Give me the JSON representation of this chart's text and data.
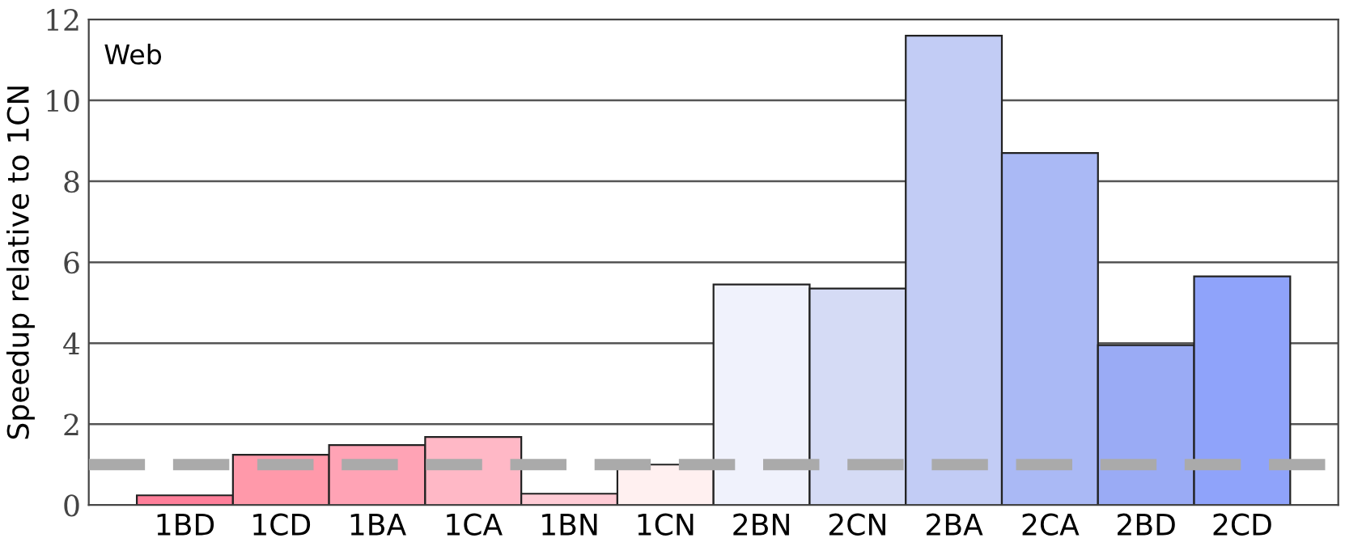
{
  "chart_data": {
    "type": "bar",
    "ylabel": "Speedup relative to 1CN",
    "annotations": [
      "Web"
    ],
    "categories": [
      "1BD",
      "1CD",
      "1BA",
      "1CA",
      "1BN",
      "1CN",
      "2BN",
      "2CN",
      "2BA",
      "2CA",
      "2BD",
      "2CD"
    ],
    "values": [
      0.24,
      1.24,
      1.48,
      1.68,
      0.28,
      1.0,
      5.45,
      5.35,
      11.6,
      8.7,
      3.95,
      5.65
    ],
    "colors": [
      "#ff7f9a",
      "#ff99aa",
      "#ffa3b5",
      "#ffb8c6",
      "#ffccd6",
      "#fff0f0",
      "#f0f2fc",
      "#d5dbf5",
      "#c2ccf5",
      "#aab9f5",
      "#9aabf5",
      "#8fa3fa"
    ],
    "ylim": [
      0,
      12
    ],
    "yticks": [
      0,
      2,
      4,
      6,
      8,
      10,
      12
    ],
    "grid": "y",
    "ref_lines": [
      {
        "axis": "y",
        "value": 1,
        "label": null,
        "color": "#aaaaaa",
        "line_style": "dashed"
      }
    ]
  }
}
